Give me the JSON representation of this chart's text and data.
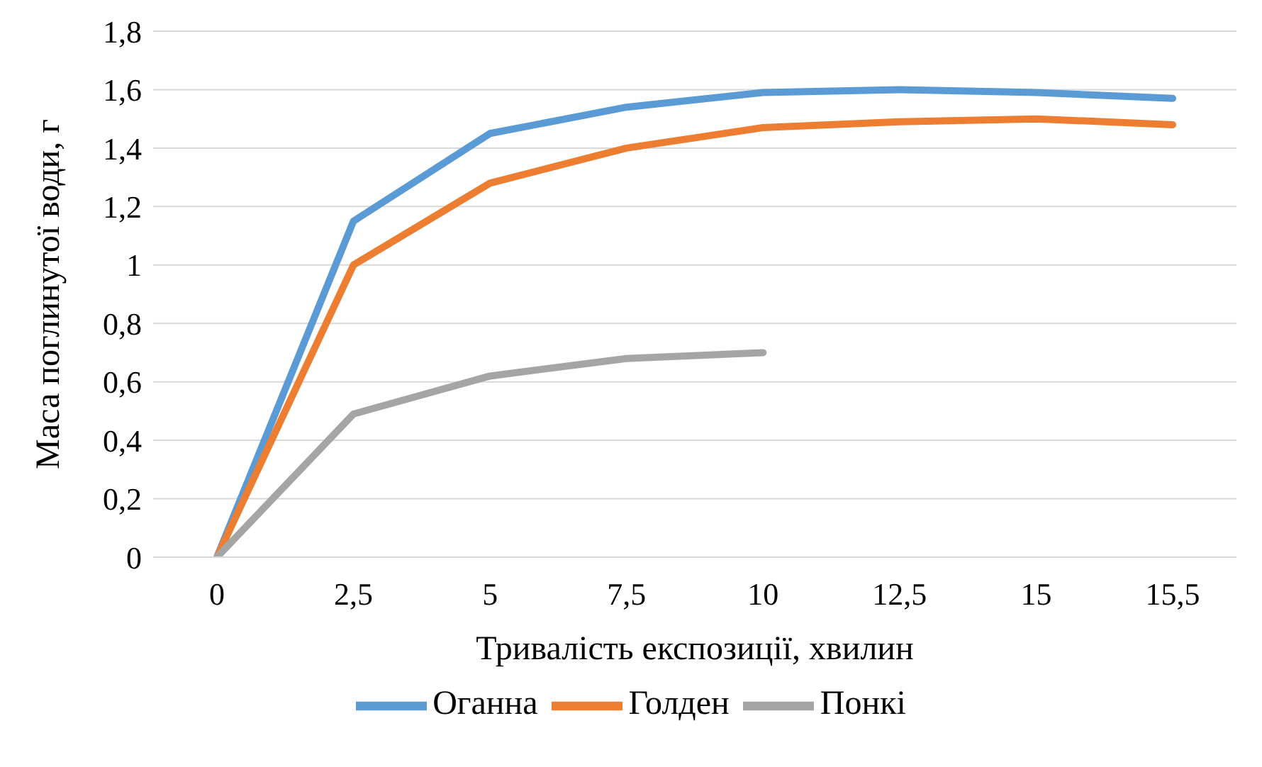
{
  "chart_data": {
    "type": "line",
    "xlabel": "Тривалість експозиції, хвилин",
    "ylabel": "Маса поглинутої води, г",
    "categories": [
      "0",
      "2,5",
      "5",
      "7,5",
      "10",
      "12,5",
      "15",
      "15,5"
    ],
    "series": [
      {
        "name": "Оганна",
        "color": "#5b9bd5",
        "values": [
          0,
          1.15,
          1.45,
          1.54,
          1.59,
          1.6,
          1.59,
          1.57
        ]
      },
      {
        "name": "Голден",
        "color": "#ed7d31",
        "values": [
          0,
          1.0,
          1.28,
          1.4,
          1.47,
          1.49,
          1.5,
          1.48
        ]
      },
      {
        "name": "Понкі",
        "color": "#a5a5a5",
        "values": [
          0,
          0.49,
          0.62,
          0.68,
          0.7,
          null,
          null,
          null
        ]
      }
    ],
    "ylim": [
      0,
      1.8
    ],
    "yticks": [
      0,
      {
        "value": 0.2,
        "label": "0,2"
      },
      {
        "value": 0.4,
        "label": "0,4"
      },
      {
        "value": 0.6,
        "label": "0,6"
      },
      {
        "value": 0.8,
        "label": "0,8"
      },
      1,
      {
        "value": 1.2,
        "label": "1,2"
      },
      {
        "value": 1.4,
        "label": "1,4"
      },
      {
        "value": 1.6,
        "label": "1,6"
      },
      {
        "value": 1.8,
        "label": "1,8"
      }
    ],
    "grid": "y",
    "legend": "bottom",
    "marker": "none",
    "line_style": "solid"
  }
}
